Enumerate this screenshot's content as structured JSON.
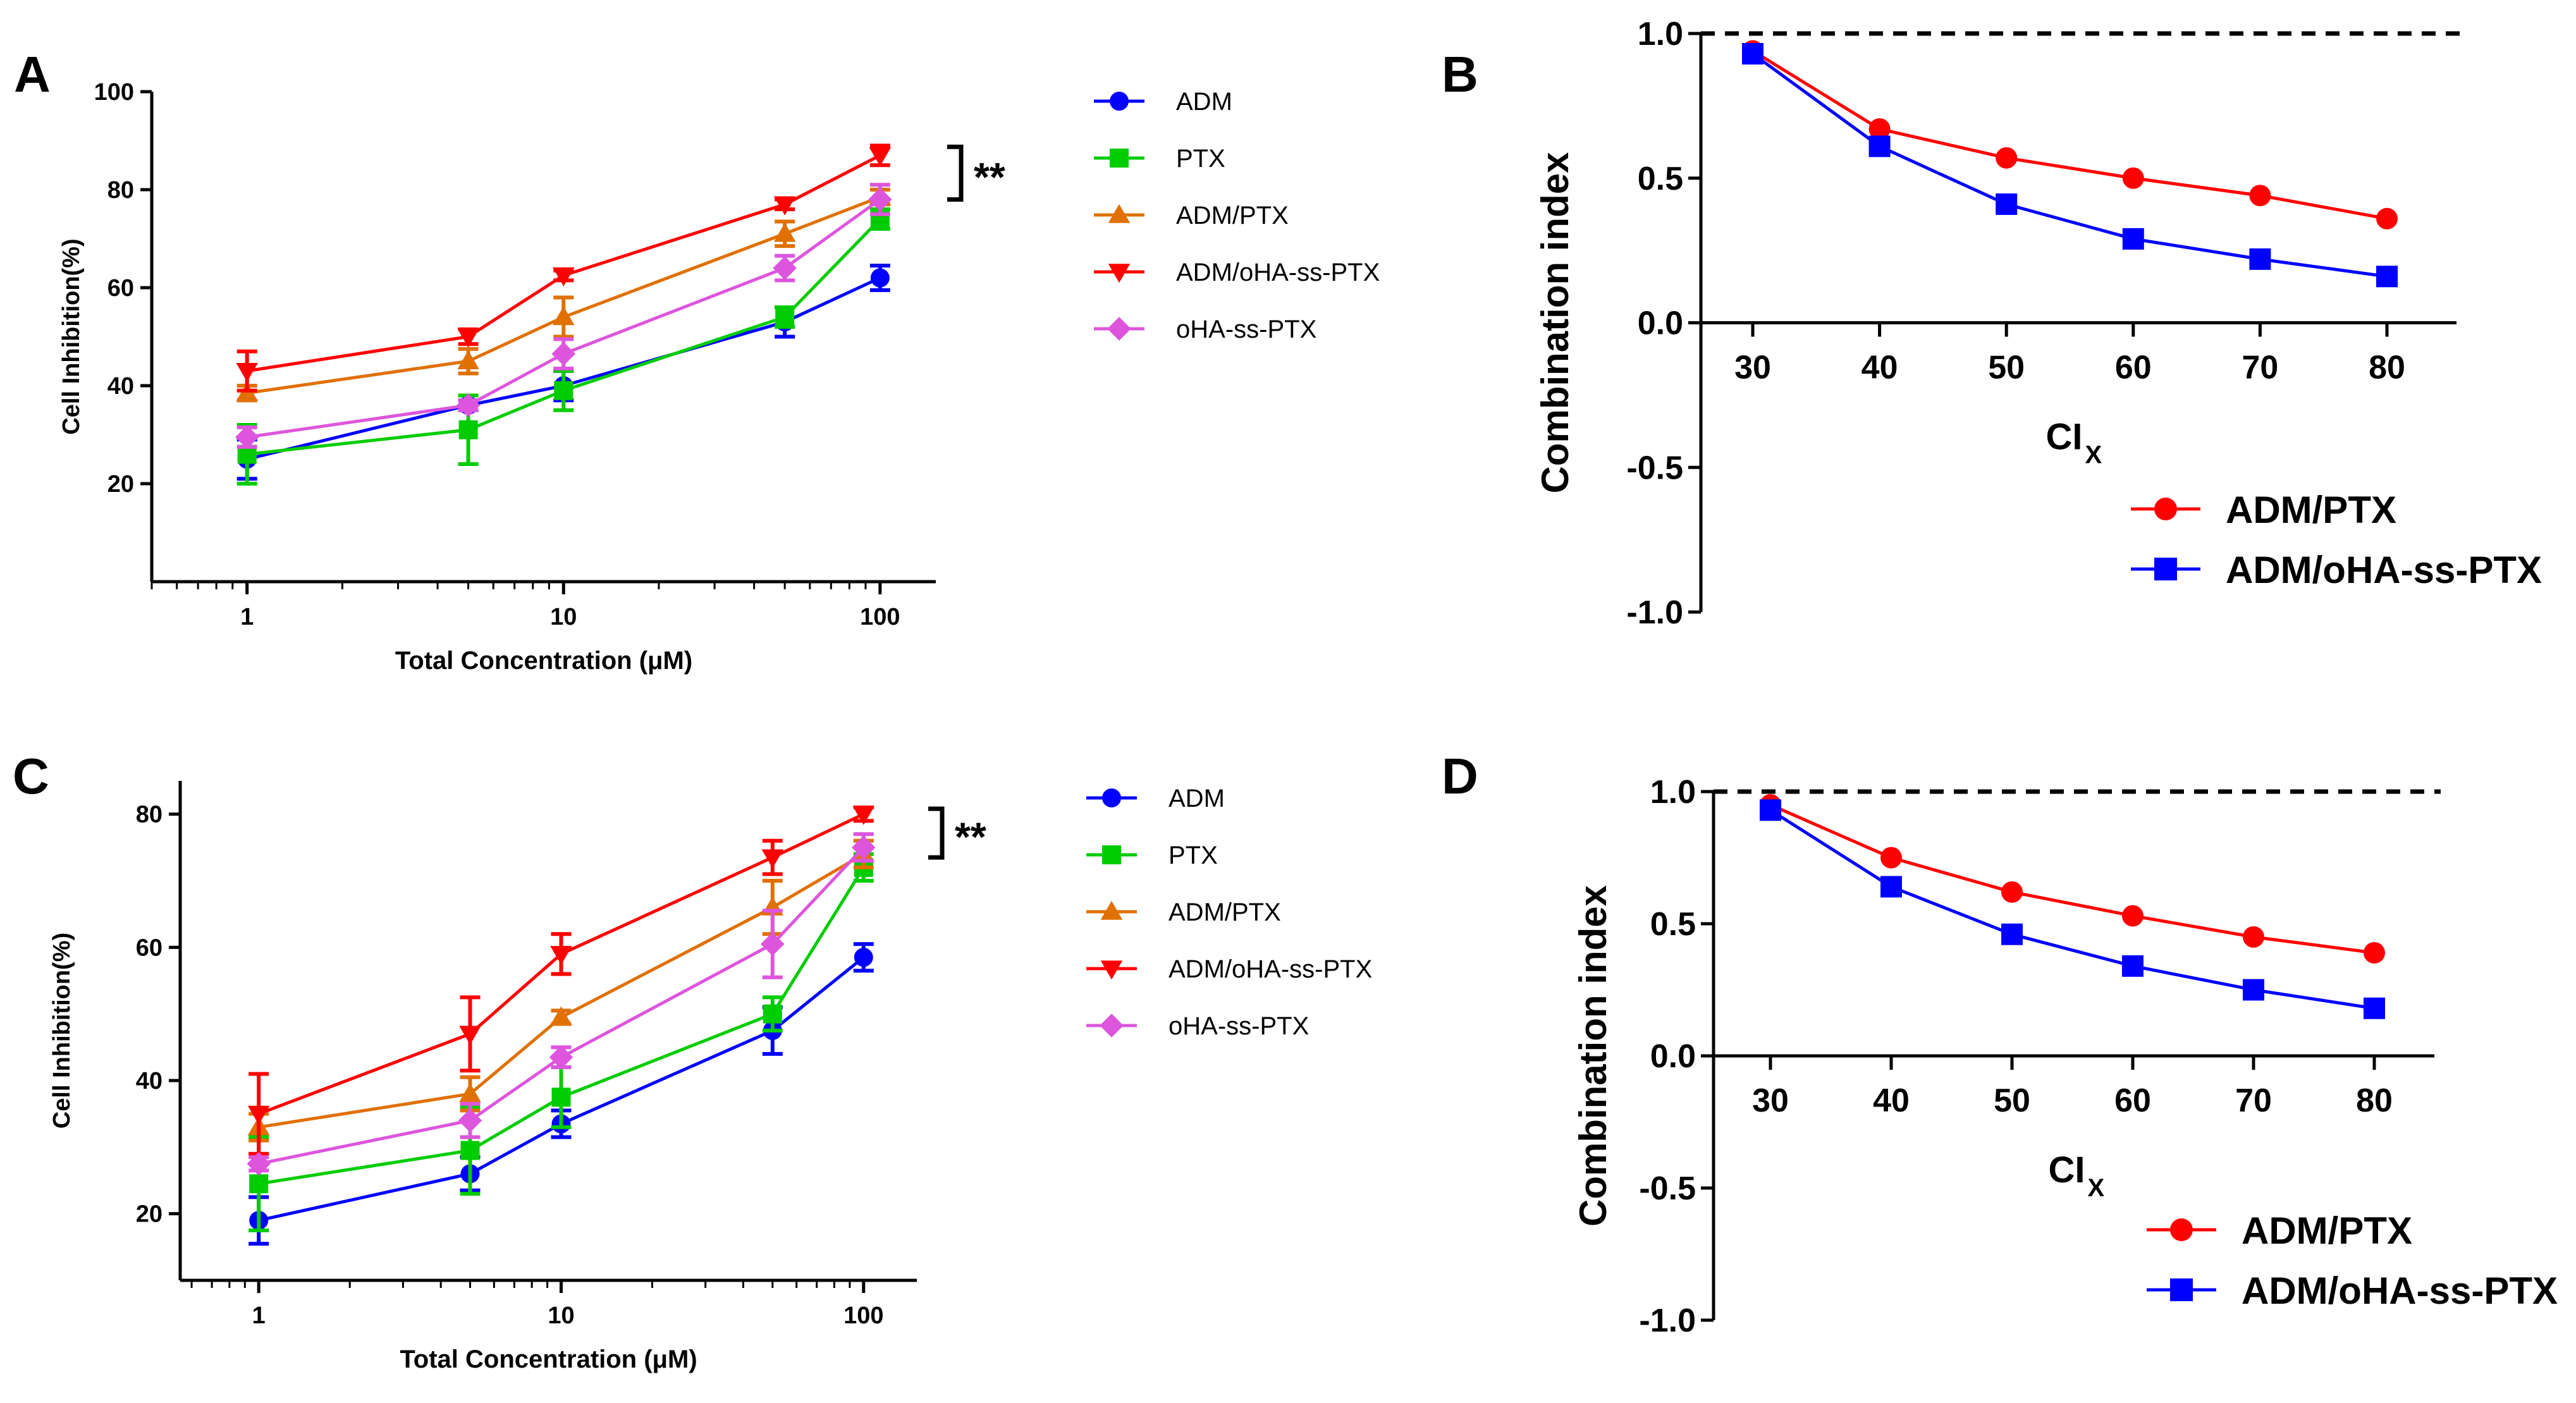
{
  "chart_data": [
    {
      "panel": "A",
      "type": "line",
      "xscale": "log",
      "xlabel": "Total Concentration (μM)",
      "ylabel": "Cell Inhibition(%)",
      "ylim": [
        0,
        100
      ],
      "yticks": [
        20,
        40,
        60,
        80,
        100
      ],
      "xticks": [
        1,
        10,
        100
      ],
      "x": [
        1,
        5,
        10,
        50,
        100
      ],
      "series": [
        {
          "name": "ADM",
          "marker": "circle",
          "color": "#0000ff",
          "values": [
            25,
            36,
            40,
            53,
            62
          ],
          "err": [
            4,
            1,
            3,
            3,
            2.5
          ]
        },
        {
          "name": "PTX",
          "marker": "square",
          "color": "#00cc00",
          "values": [
            26,
            31,
            39,
            54,
            74
          ],
          "err": [
            6,
            7,
            4,
            2,
            2
          ]
        },
        {
          "name": "ADM/PTX",
          "marker": "triangle-up",
          "color": "#e07000",
          "values": [
            38.5,
            45,
            54,
            71,
            78.5
          ],
          "err": [
            1.5,
            2.5,
            4,
            2.5,
            1.5
          ]
        },
        {
          "name": "ADM/oHA-ss-PTX",
          "marker": "triangle-down",
          "color": "#ff0000",
          "values": [
            43,
            50,
            62.5,
            77,
            87
          ],
          "err": [
            4,
            1.5,
            1,
            1,
            2
          ]
        },
        {
          "name": "oHA-ss-PTX",
          "marker": "diamond",
          "color": "#dd55dd",
          "values": [
            29.5,
            36,
            46.5,
            64,
            78
          ],
          "err": [
            2,
            1,
            3,
            2.5,
            3
          ]
        }
      ],
      "significance": "**"
    },
    {
      "panel": "B",
      "type": "line",
      "xlabel": "CI",
      "xlabel_sub": "X",
      "ylabel": "Combination index",
      "ylim": [
        -1.0,
        1.0
      ],
      "yticks": [
        1.0,
        0.5,
        0.0,
        -0.5,
        -1.0
      ],
      "ytick_labels": [
        "1.0",
        "0.5",
        "0.0",
        "-0.5",
        "-1.0"
      ],
      "x": [
        30,
        40,
        50,
        60,
        70,
        80
      ],
      "xticks": [
        30,
        40,
        50,
        60,
        70,
        80
      ],
      "reference_line": 1.0,
      "series": [
        {
          "name": "ADM/PTX",
          "marker": "circle",
          "color": "#ff0000",
          "values": [
            0.94,
            0.67,
            0.57,
            0.5,
            0.44,
            0.36
          ]
        },
        {
          "name": "ADM/oHA-ss-PTX",
          "marker": "square",
          "color": "#0000ff",
          "values": [
            0.93,
            0.61,
            0.41,
            0.29,
            0.22,
            0.16
          ]
        }
      ]
    },
    {
      "panel": "C",
      "type": "line",
      "xscale": "log",
      "xlabel": "Total Concentration (μM)",
      "ylabel": "Cell Inhibition(%)",
      "ylim": [
        10,
        85
      ],
      "yticks": [
        20,
        40,
        60,
        80
      ],
      "xticks": [
        1,
        10,
        100
      ],
      "x": [
        1,
        5,
        10,
        50,
        100
      ],
      "series": [
        {
          "name": "ADM",
          "marker": "circle",
          "color": "#0000ff",
          "values": [
            19,
            26,
            33.5,
            47.5,
            58.5
          ],
          "err": [
            3.5,
            2.5,
            2,
            3.5,
            2
          ]
        },
        {
          "name": "PTX",
          "marker": "square",
          "color": "#00cc00",
          "values": [
            24.5,
            29.5,
            37.5,
            50,
            72
          ],
          "err": [
            7,
            6.5,
            4.5,
            2.5,
            2
          ]
        },
        {
          "name": "ADM/PTX",
          "marker": "triangle-up",
          "color": "#e07000",
          "values": [
            33,
            38,
            49.5,
            66,
            74
          ],
          "err": [
            2,
            2.5,
            1,
            4,
            2
          ]
        },
        {
          "name": "ADM/oHA-ss-PTX",
          "marker": "triangle-down",
          "color": "#ff0000",
          "values": [
            35,
            47,
            59,
            73.5,
            80
          ],
          "err": [
            6,
            5.5,
            3,
            2.5,
            1
          ]
        },
        {
          "name": "oHA-ss-PTX",
          "marker": "diamond",
          "color": "#dd55dd",
          "values": [
            27.5,
            34,
            43.5,
            60.5,
            75
          ],
          "err": [
            1,
            2.5,
            1.5,
            5,
            2
          ]
        }
      ],
      "significance": "**"
    },
    {
      "panel": "D",
      "type": "line",
      "xlabel": "CI",
      "xlabel_sub": "X",
      "ylabel": "Combination index",
      "ylim": [
        -1.0,
        1.0
      ],
      "yticks": [
        1.0,
        0.5,
        0.0,
        -0.5,
        -1.0
      ],
      "ytick_labels": [
        "1.0",
        "0.5",
        "0.0",
        "-0.5",
        "-1.0"
      ],
      "x": [
        30,
        40,
        50,
        60,
        70,
        80
      ],
      "xticks": [
        30,
        40,
        50,
        60,
        70,
        80
      ],
      "reference_line": 1.0,
      "series": [
        {
          "name": "ADM/PTX",
          "marker": "circle",
          "color": "#ff0000",
          "values": [
            0.95,
            0.75,
            0.62,
            0.53,
            0.45,
            0.39
          ]
        },
        {
          "name": "ADM/oHA-ss-PTX",
          "marker": "square",
          "color": "#0000ff",
          "values": [
            0.93,
            0.64,
            0.46,
            0.34,
            0.25,
            0.18
          ]
        }
      ]
    }
  ]
}
